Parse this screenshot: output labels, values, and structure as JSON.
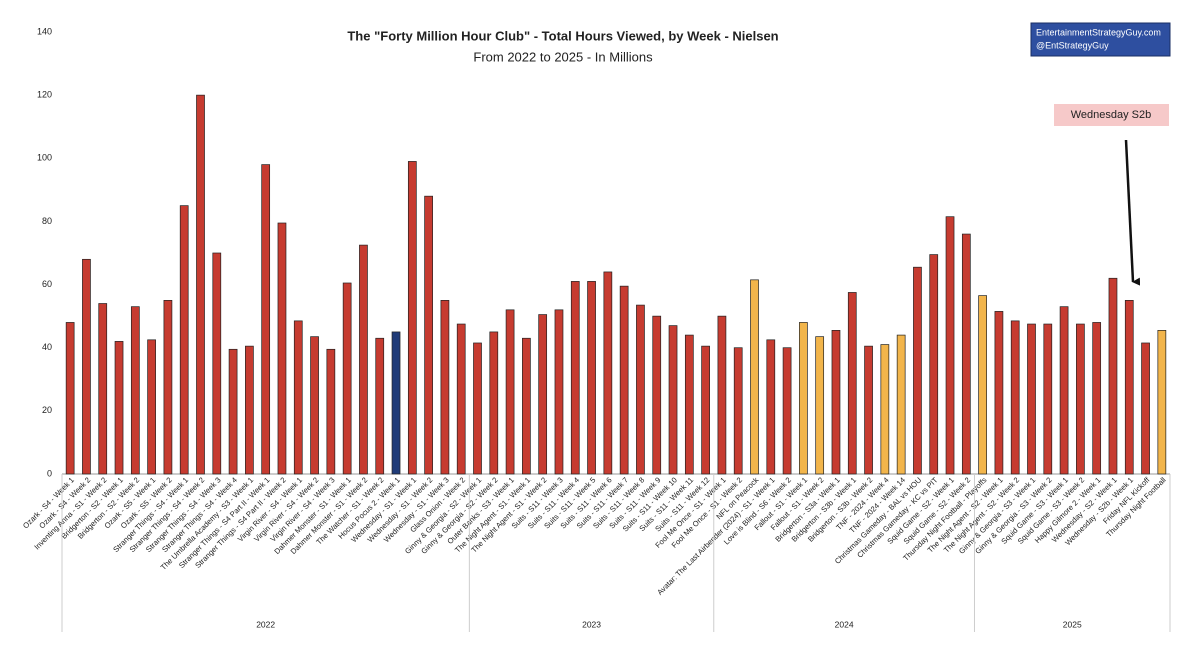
{
  "chart_data": {
    "type": "bar",
    "title": "The \"Forty Million Hour Club\" - Total Hours Viewed, by Week - Nielsen",
    "subtitle": "From 2022 to 2025 - In Millions",
    "credit": [
      "EntertainmentStrategyGuy.com",
      "@EntStrategyGuy"
    ],
    "annotation": "Wednesday S2b",
    "ylim": [
      0,
      140
    ],
    "yticks": [
      0,
      20,
      40,
      60,
      80,
      100,
      120,
      140
    ],
    "grid": false,
    "groups": [
      {
        "label": "2022",
        "count": 25
      },
      {
        "label": "2023",
        "count": 15
      },
      {
        "label": "2024",
        "count": 16
      },
      {
        "label": "2025",
        "count": 12
      }
    ],
    "categories": [
      "Ozark - S4 - Week 1",
      "Ozark - S4 - Week 2",
      "Inventing Anna - S1 - Week 2",
      "Bridgerton - S2 - Week 1",
      "Bridgerton - S2 - Week 2",
      "Ozark - S5 - Week 1",
      "Ozark - S5 - Week 2",
      "Stranger Things - S4 - Week 1",
      "Stranger Things - S4 - Week 2",
      "Stranger Things - S4 - Week 3",
      "Stranger Things - S4 - Week 4",
      "The Umbrella Academy - S3 - Week 1",
      "Stranger Things - S4 Part II - Week 1",
      "Stranger Things - S4 Part II - Week 2",
      "Virgin River - S4 - Week 1",
      "Virgin River - S4 - Week 2",
      "Virgin River - S4 - Week 3",
      "Dahmer Monster - S1 - Week 1",
      "Dahmer Monster - S1 - Week 2",
      "The Watcher - S1 - Week 2",
      "Hocus Pocus 2 - Week 1",
      "Wednesday - S1 - Week 1",
      "Wednesday - S1 - Week 2",
      "Wednesday - S1 - Week 3",
      "Glass Onion - Week 2",
      "Ginny & Georgia - S2 - Week 1",
      "Ginny & Georgia - S2 - Week 2",
      "Outer Banks - S3 - Week 1",
      "The Night Agent - S1 - Week 1",
      "The Night Agent - S1 - Week 2",
      "Suits - S11 - Week 3",
      "Suits - S11 - Week 4",
      "Suits - S11 - Week 5",
      "Suits - S11 - Week 6",
      "Suits - S11 - Week 7",
      "Suits - S11 - Week 8",
      "Suits - S11 - Week 9",
      "Suits - S11 - Week 10",
      "Suits - S11 - Week 11",
      "Suits - S11 - Week 12",
      "Fool Me Once - S1 - Week 1",
      "Fool Me Once - S1 - Week 2",
      "NFL on Peacock",
      "Avatar: The Last Airbender (2024) - S1 - Week 1",
      "Love is Blind - S6 - Week 2",
      "Fallout - S1 - Week 1",
      "Fallout - S1 - Week 2",
      "Bridgerton - S3a - Week 1",
      "Bridgerton - S3b - Week 1",
      "Bridgerton - S3b - Week 2",
      "TNF - 2024 - Week 4",
      "TNF - 2024 - Week 14",
      "Christmas Gameday - BAL vs HOU",
      "Christmas Gameday - KC vs PIT",
      "Squid Game - S2 - Week 1",
      "Squid Game - S2 - Week 2",
      "Thursday Night Football - Playoffs",
      "The Night Agent - S2 - Week 1",
      "The Night Agent - S2 - Week 2",
      "Ginny & Georgia - S3 - Week 1",
      "Ginny & Georgia - S3 - Week 2",
      "Squid Game - S3 - Week 1",
      "Squid Game - S3 - Week 2",
      "Happy Gilmore 2 - Week 1",
      "Wednesday - S2 - Week 1",
      "Wednesday - S2b - Week 1",
      "Friday NFL Kickoff",
      "Thursday Night Football"
    ],
    "series": [
      {
        "values": [
          48,
          68,
          54,
          42,
          53,
          42.5,
          55,
          85,
          120,
          70,
          39.5,
          40.5,
          98,
          79.5,
          48.5,
          43.5,
          39.5,
          60.5,
          72.5,
          43,
          45,
          99,
          88,
          55,
          47.5,
          41.5,
          45,
          52,
          43,
          50.5,
          52,
          61,
          61,
          64,
          59.5,
          53.5,
          50,
          47,
          44,
          40.5,
          50,
          40,
          61.5,
          42.5,
          40,
          48,
          43.5,
          45.5,
          57.5,
          40.5,
          41,
          44,
          65.5,
          69.5,
          81.5,
          76,
          56.5,
          51.5,
          48.5,
          47.5,
          47.5,
          53,
          47.5,
          48,
          62,
          55,
          41.5,
          45.5
        ],
        "colors": [
          "#c63b30",
          "#c63b30",
          "#c63b30",
          "#c63b30",
          "#c63b30",
          "#c63b30",
          "#c63b30",
          "#c63b30",
          "#c63b30",
          "#c63b30",
          "#c63b30",
          "#c63b30",
          "#c63b30",
          "#c63b30",
          "#c63b30",
          "#c63b30",
          "#c63b30",
          "#c63b30",
          "#c63b30",
          "#c63b30",
          "#1f3b78",
          "#c63b30",
          "#c63b30",
          "#c63b30",
          "#c63b30",
          "#c63b30",
          "#c63b30",
          "#c63b30",
          "#c63b30",
          "#c63b30",
          "#c63b30",
          "#c63b30",
          "#c63b30",
          "#c63b30",
          "#c63b30",
          "#c63b30",
          "#c63b30",
          "#c63b30",
          "#c63b30",
          "#c63b30",
          "#c63b30",
          "#c63b30",
          "#f2b54b",
          "#c63b30",
          "#c63b30",
          "#f2b54b",
          "#f2b54b",
          "#c63b30",
          "#c63b30",
          "#c63b30",
          "#f2b54b",
          "#f2b54b",
          "#c63b30",
          "#c63b30",
          "#c63b30",
          "#c63b30",
          "#f2b54b",
          "#c63b30",
          "#c63b30",
          "#c63b30",
          "#c63b30",
          "#c63b30",
          "#c63b30",
          "#c63b30",
          "#c63b30",
          "#c63b30",
          "#c63b30",
          "#f2b54b"
        ]
      }
    ]
  }
}
